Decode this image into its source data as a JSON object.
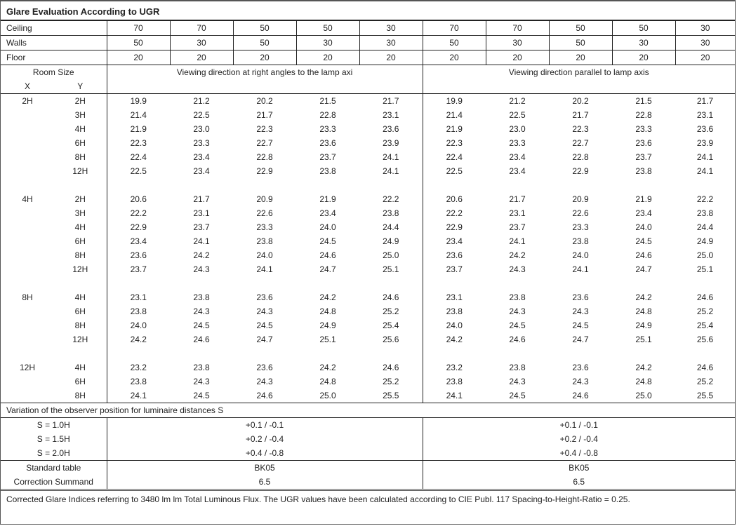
{
  "title": "Glare Evaluation According to UGR",
  "reflectances": [
    {
      "label": "Ceiling",
      "values": [
        "70",
        "70",
        "50",
        "50",
        "30",
        "70",
        "70",
        "50",
        "50",
        "30"
      ]
    },
    {
      "label": "Walls",
      "values": [
        "50",
        "30",
        "50",
        "30",
        "30",
        "50",
        "30",
        "50",
        "30",
        "30"
      ]
    },
    {
      "label": "Floor",
      "values": [
        "20",
        "20",
        "20",
        "20",
        "20",
        "20",
        "20",
        "20",
        "20",
        "20"
      ]
    }
  ],
  "header": {
    "room_size": "Room Size",
    "x": "X",
    "y": "Y",
    "perpendicular": "Viewing direction at right angles to the lamp axi",
    "parallel": "Viewing direction parallel to lamp axis"
  },
  "groups": [
    {
      "x": "2H",
      "rows": [
        {
          "y": "2H",
          "perp": [
            "19.9",
            "21.2",
            "20.2",
            "21.5",
            "21.7"
          ],
          "par": [
            "19.9",
            "21.2",
            "20.2",
            "21.5",
            "21.7"
          ]
        },
        {
          "y": "3H",
          "perp": [
            "21.4",
            "22.5",
            "21.7",
            "22.8",
            "23.1"
          ],
          "par": [
            "21.4",
            "22.5",
            "21.7",
            "22.8",
            "23.1"
          ]
        },
        {
          "y": "4H",
          "perp": [
            "21.9",
            "23.0",
            "22.3",
            "23.3",
            "23.6"
          ],
          "par": [
            "21.9",
            "23.0",
            "22.3",
            "23.3",
            "23.6"
          ]
        },
        {
          "y": "6H",
          "perp": [
            "22.3",
            "23.3",
            "22.7",
            "23.6",
            "23.9"
          ],
          "par": [
            "22.3",
            "23.3",
            "22.7",
            "23.6",
            "23.9"
          ]
        },
        {
          "y": "8H",
          "perp": [
            "22.4",
            "23.4",
            "22.8",
            "23.7",
            "24.1"
          ],
          "par": [
            "22.4",
            "23.4",
            "22.8",
            "23.7",
            "24.1"
          ]
        },
        {
          "y": "12H",
          "perp": [
            "22.5",
            "23.4",
            "22.9",
            "23.8",
            "24.1"
          ],
          "par": [
            "22.5",
            "23.4",
            "22.9",
            "23.8",
            "24.1"
          ]
        }
      ]
    },
    {
      "x": "4H",
      "rows": [
        {
          "y": "2H",
          "perp": [
            "20.6",
            "21.7",
            "20.9",
            "21.9",
            "22.2"
          ],
          "par": [
            "20.6",
            "21.7",
            "20.9",
            "21.9",
            "22.2"
          ]
        },
        {
          "y": "3H",
          "perp": [
            "22.2",
            "23.1",
            "22.6",
            "23.4",
            "23.8"
          ],
          "par": [
            "22.2",
            "23.1",
            "22.6",
            "23.4",
            "23.8"
          ]
        },
        {
          "y": "4H",
          "perp": [
            "22.9",
            "23.7",
            "23.3",
            "24.0",
            "24.4"
          ],
          "par": [
            "22.9",
            "23.7",
            "23.3",
            "24.0",
            "24.4"
          ]
        },
        {
          "y": "6H",
          "perp": [
            "23.4",
            "24.1",
            "23.8",
            "24.5",
            "24.9"
          ],
          "par": [
            "23.4",
            "24.1",
            "23.8",
            "24.5",
            "24.9"
          ]
        },
        {
          "y": "8H",
          "perp": [
            "23.6",
            "24.2",
            "24.0",
            "24.6",
            "25.0"
          ],
          "par": [
            "23.6",
            "24.2",
            "24.0",
            "24.6",
            "25.0"
          ]
        },
        {
          "y": "12H",
          "perp": [
            "23.7",
            "24.3",
            "24.1",
            "24.7",
            "25.1"
          ],
          "par": [
            "23.7",
            "24.3",
            "24.1",
            "24.7",
            "25.1"
          ]
        }
      ]
    },
    {
      "x": "8H",
      "rows": [
        {
          "y": "4H",
          "perp": [
            "23.1",
            "23.8",
            "23.6",
            "24.2",
            "24.6"
          ],
          "par": [
            "23.1",
            "23.8",
            "23.6",
            "24.2",
            "24.6"
          ]
        },
        {
          "y": "6H",
          "perp": [
            "23.8",
            "24.3",
            "24.3",
            "24.8",
            "25.2"
          ],
          "par": [
            "23.8",
            "24.3",
            "24.3",
            "24.8",
            "25.2"
          ]
        },
        {
          "y": "8H",
          "perp": [
            "24.0",
            "24.5",
            "24.5",
            "24.9",
            "25.4"
          ],
          "par": [
            "24.0",
            "24.5",
            "24.5",
            "24.9",
            "25.4"
          ]
        },
        {
          "y": "12H",
          "perp": [
            "24.2",
            "24.6",
            "24.7",
            "25.1",
            "25.6"
          ],
          "par": [
            "24.2",
            "24.6",
            "24.7",
            "25.1",
            "25.6"
          ]
        }
      ]
    },
    {
      "x": "12H",
      "rows": [
        {
          "y": "4H",
          "perp": [
            "23.2",
            "23.8",
            "23.6",
            "24.2",
            "24.6"
          ],
          "par": [
            "23.2",
            "23.8",
            "23.6",
            "24.2",
            "24.6"
          ]
        },
        {
          "y": "6H",
          "perp": [
            "23.8",
            "24.3",
            "24.3",
            "24.8",
            "25.2"
          ],
          "par": [
            "23.8",
            "24.3",
            "24.3",
            "24.8",
            "25.2"
          ]
        },
        {
          "y": "8H",
          "perp": [
            "24.1",
            "24.5",
            "24.6",
            "25.0",
            "25.5"
          ],
          "par": [
            "24.1",
            "24.5",
            "24.6",
            "25.0",
            "25.5"
          ]
        }
      ]
    }
  ],
  "variation": {
    "title": "Variation of the observer position for luminaire distances S",
    "rows": [
      {
        "label": "S = 1.0H",
        "perp": "+0.1 / -0.1",
        "par": "+0.1 / -0.1"
      },
      {
        "label": "S = 1.5H",
        "perp": "+0.2 / -0.4",
        "par": "+0.2 / -0.4"
      },
      {
        "label": "S = 2.0H",
        "perp": "+0.4 / -0.8",
        "par": "+0.4 / -0.8"
      }
    ]
  },
  "standard": {
    "label": "Standard table",
    "perp": "BK05",
    "par": "BK05"
  },
  "correction": {
    "label": "Correction Summand",
    "perp": "6.5",
    "par": "6.5"
  },
  "footer": "Corrected Glare Indices referring to 3480 lm lm Total Luminous Flux. The UGR values have been calculated according to CIE Publ. 117    Spacing-to-Height-Ratio = 0.25."
}
